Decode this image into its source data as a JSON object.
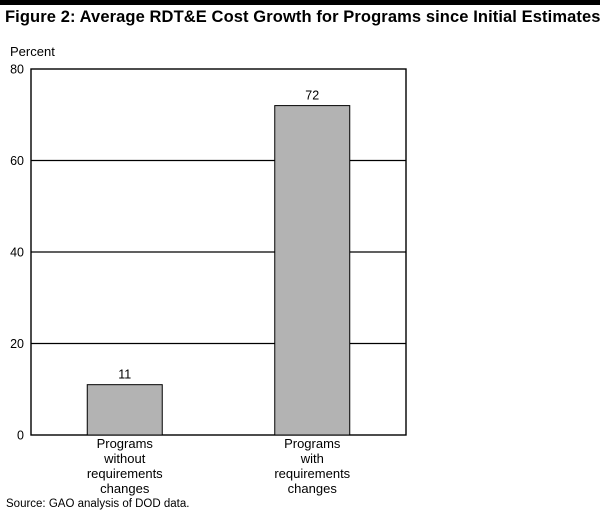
{
  "figure_title": "Figure 2: Average RDT&E Cost Growth for Programs since Initial Estimates",
  "source_note": "Source: GAO analysis of DOD data.",
  "chart_data": {
    "type": "bar",
    "title": "Figure 2: Average RDT&E Cost Growth for Programs since Initial Estimates",
    "xlabel": "",
    "ylabel": "Percent",
    "ylim": [
      0,
      80
    ],
    "yticks": [
      0,
      20,
      40,
      60,
      80
    ],
    "grid": true,
    "categories": [
      [
        "Programs",
        "without",
        "requirements",
        "changes"
      ],
      [
        "Programs",
        "with",
        "requirements",
        "changes"
      ]
    ],
    "values": [
      11,
      72
    ],
    "data_labels": [
      "11",
      "72"
    ],
    "bar_color": "#b3b3b3",
    "bar_edge_color": "#000000"
  }
}
